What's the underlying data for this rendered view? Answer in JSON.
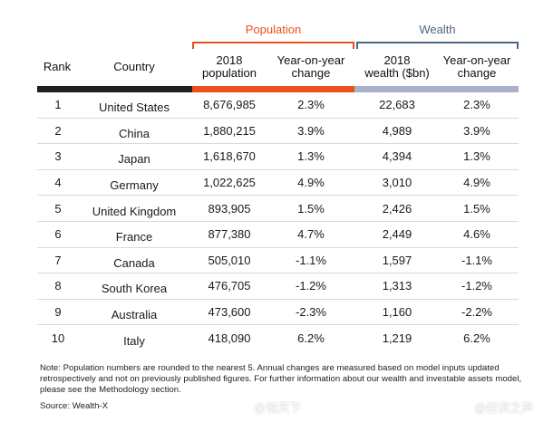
{
  "groups": {
    "population": "Population",
    "wealth": "Wealth"
  },
  "headers": {
    "rank": "Rank",
    "country": "Country",
    "population_2018": "2018\npopulation",
    "population_yoy": "Year-on-year\nchange",
    "wealth_2018": "2018\nwealth ($bn)",
    "wealth_yoy": "Year-on-year\nchange"
  },
  "colors": {
    "population_accent": "#e8501c",
    "wealth_accent": "#4d6680",
    "header_bar_dark": "#231f20",
    "header_bar_grey": "#a9b2c8"
  },
  "rows": [
    {
      "rank": "1",
      "country": "United States",
      "population": "8,676,985",
      "pop_change": "2.3%",
      "wealth": "22,683",
      "wealth_change": "2.3%"
    },
    {
      "rank": "2",
      "country": "China",
      "population": "1,880,215",
      "pop_change": "3.9%",
      "wealth": "4,989",
      "wealth_change": "3.9%"
    },
    {
      "rank": "3",
      "country": "Japan",
      "population": "1,618,670",
      "pop_change": "1.3%",
      "wealth": "4,394",
      "wealth_change": "1.3%"
    },
    {
      "rank": "4",
      "country": "Germany",
      "population": "1,022,625",
      "pop_change": "4.9%",
      "wealth": "3,010",
      "wealth_change": "4.9%"
    },
    {
      "rank": "5",
      "country": "United Kingdom",
      "population": "893,905",
      "pop_change": "1.5%",
      "wealth": "2,426",
      "wealth_change": "1.5%"
    },
    {
      "rank": "6",
      "country": "France",
      "population": "877,380",
      "pop_change": "4.7%",
      "wealth": "2,449",
      "wealth_change": "4.6%"
    },
    {
      "rank": "7",
      "country": "Canada",
      "population": "505,010",
      "pop_change": "-1.1%",
      "wealth": "1,597",
      "wealth_change": "-1.1%"
    },
    {
      "rank": "8",
      "country": "South Korea",
      "population": "476,705",
      "pop_change": "-1.2%",
      "wealth": "1,313",
      "wealth_change": "-1.2%"
    },
    {
      "rank": "9",
      "country": "Australia",
      "population": "473,600",
      "pop_change": "-2.3%",
      "wealth": "1,160",
      "wealth_change": "-2.2%"
    },
    {
      "rank": "10",
      "country": "Italy",
      "population": "418,090",
      "pop_change": "6.2%",
      "wealth": "1,219",
      "wealth_change": "6.2%"
    }
  ],
  "note": "Note: Population numbers are rounded to the nearest 5. Annual changes are measured based on model inputs updated retrospectively and not on previously published figures. For further information about our wealth and investable assets model, please see the Methodology section.",
  "source": "Source: Wealth-X",
  "watermarks": {
    "left": "@说天下",
    "right": "@经济之声",
    "icon": "weibo-icon"
  }
}
